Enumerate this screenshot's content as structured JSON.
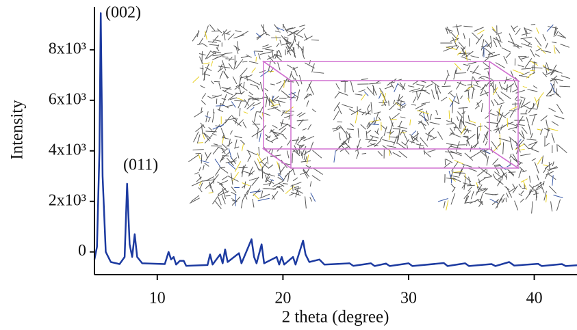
{
  "chart_data": {
    "type": "line",
    "x_label": "2 theta (degree)",
    "y_label": "Intensity",
    "annotations": [
      "(002)",
      "(011)"
    ],
    "color": "#1c3aa0",
    "xlim": [
      5,
      43.4
    ],
    "ylim": [
      -900,
      9700
    ],
    "xticks": [
      10,
      20,
      30,
      40
    ],
    "yticks": [
      0,
      {
        "value": 2000,
        "label": "2x10³"
      },
      {
        "value": 4000,
        "label": "4x10³"
      },
      {
        "value": 6000,
        "label": "6x10³"
      },
      {
        "value": 8000,
        "label": "8x10³"
      }
    ],
    "x": [
      5.0,
      5.2,
      5.4,
      5.5,
      5.65,
      5.9,
      6.3,
      7.0,
      7.4,
      7.6,
      7.8,
      8.0,
      8.2,
      8.4,
      8.8,
      10.6,
      10.9,
      11.1,
      11.3,
      11.5,
      11.8,
      12.1,
      12.3,
      14.0,
      14.2,
      14.4,
      15.0,
      15.2,
      15.4,
      15.6,
      16.5,
      16.7,
      17.5,
      17.7,
      17.9,
      18.3,
      18.5,
      19.5,
      19.7,
      19.9,
      20.1,
      20.8,
      21.0,
      21.6,
      21.8,
      22.1,
      22.9,
      23.3,
      25.3,
      25.6,
      27.0,
      27.3,
      28.2,
      28.5,
      30.0,
      30.3,
      32.8,
      33.1,
      34.5,
      34.8,
      36.6,
      36.9,
      38.0,
      38.4,
      40.3,
      40.6,
      42.2,
      42.5,
      43.4
    ],
    "values": [
      -300,
      200,
      4000,
      9450,
      3000,
      0,
      -400,
      -480,
      -200,
      2700,
      300,
      -200,
      700,
      -200,
      -450,
      -480,
      0,
      -300,
      -200,
      -500,
      -350,
      -350,
      -550,
      -520,
      -100,
      -500,
      -100,
      -450,
      100,
      -400,
      -50,
      -450,
      500,
      -200,
      -450,
      300,
      -450,
      -200,
      -500,
      -200,
      -500,
      -200,
      -500,
      450,
      -100,
      -400,
      -300,
      -500,
      -450,
      -550,
      -450,
      -560,
      -460,
      -560,
      -450,
      -560,
      -440,
      -560,
      -450,
      -560,
      -480,
      -560,
      -400,
      -540,
      -470,
      -560,
      -480,
      -560,
      -530
    ]
  }
}
